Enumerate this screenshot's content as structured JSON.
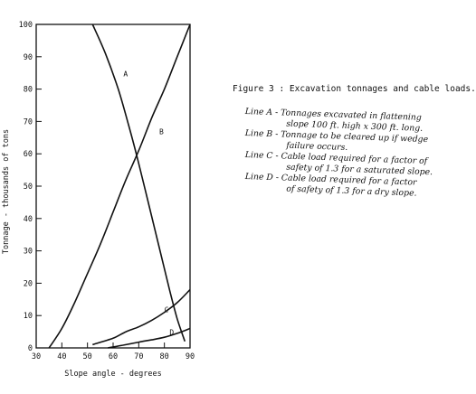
{
  "chart_data": {
    "type": "line",
    "title": "",
    "xlabel": "Slope angle - degrees",
    "ylabel": "Tonnage - thousands of tons",
    "xlim": [
      30,
      90
    ],
    "ylim": [
      0,
      100
    ],
    "xticks": [
      "30",
      "40",
      "50",
      "60",
      "70",
      "80",
      "90"
    ],
    "yticks": [
      "0",
      "10",
      "20",
      "30",
      "40",
      "50",
      "60",
      "70",
      "80",
      "90",
      "100"
    ],
    "grid": false,
    "series": [
      {
        "name": "A",
        "x": [
          52,
          57,
          62,
          66,
          70,
          74,
          78,
          82,
          85,
          88
        ],
        "y": [
          100,
          91,
          80,
          69,
          57,
          44,
          31,
          18,
          9,
          2
        ]
      },
      {
        "name": "B",
        "x": [
          35,
          40,
          45,
          50,
          55,
          60,
          65,
          70,
          75,
          80,
          85,
          90
        ],
        "y": [
          0,
          6,
          14,
          23,
          32,
          42,
          52,
          61,
          71,
          80,
          90,
          100
        ]
      },
      {
        "name": "C",
        "x": [
          52,
          60,
          65,
          70,
          75,
          80,
          85,
          90
        ],
        "y": [
          1,
          3,
          5,
          6.5,
          8.5,
          11,
          14,
          18
        ]
      },
      {
        "name": "D",
        "x": [
          58,
          65,
          70,
          75,
          80,
          85,
          90
        ],
        "y": [
          0,
          1,
          1.8,
          2.5,
          3.3,
          4.5,
          6
        ]
      }
    ]
  },
  "caption": {
    "title": "Figure 3 : Excavation tonnages and cable loads.",
    "entries": [
      {
        "line1": "Line A - Tonnages excavated in flattening",
        "line2": "slope 100 ft. high x 300 ft. long."
      },
      {
        "line1": "Line B - Tonnage to be cleared up if wedge",
        "line2": "failure occurs."
      },
      {
        "line1": "Line C - Cable load required for a factor of",
        "line2": "safety of 1.3 for a saturated slope."
      },
      {
        "line1": "Line D - Cable load required for a factor",
        "line2": "of safety of 1.3 for a dry slope."
      }
    ]
  }
}
